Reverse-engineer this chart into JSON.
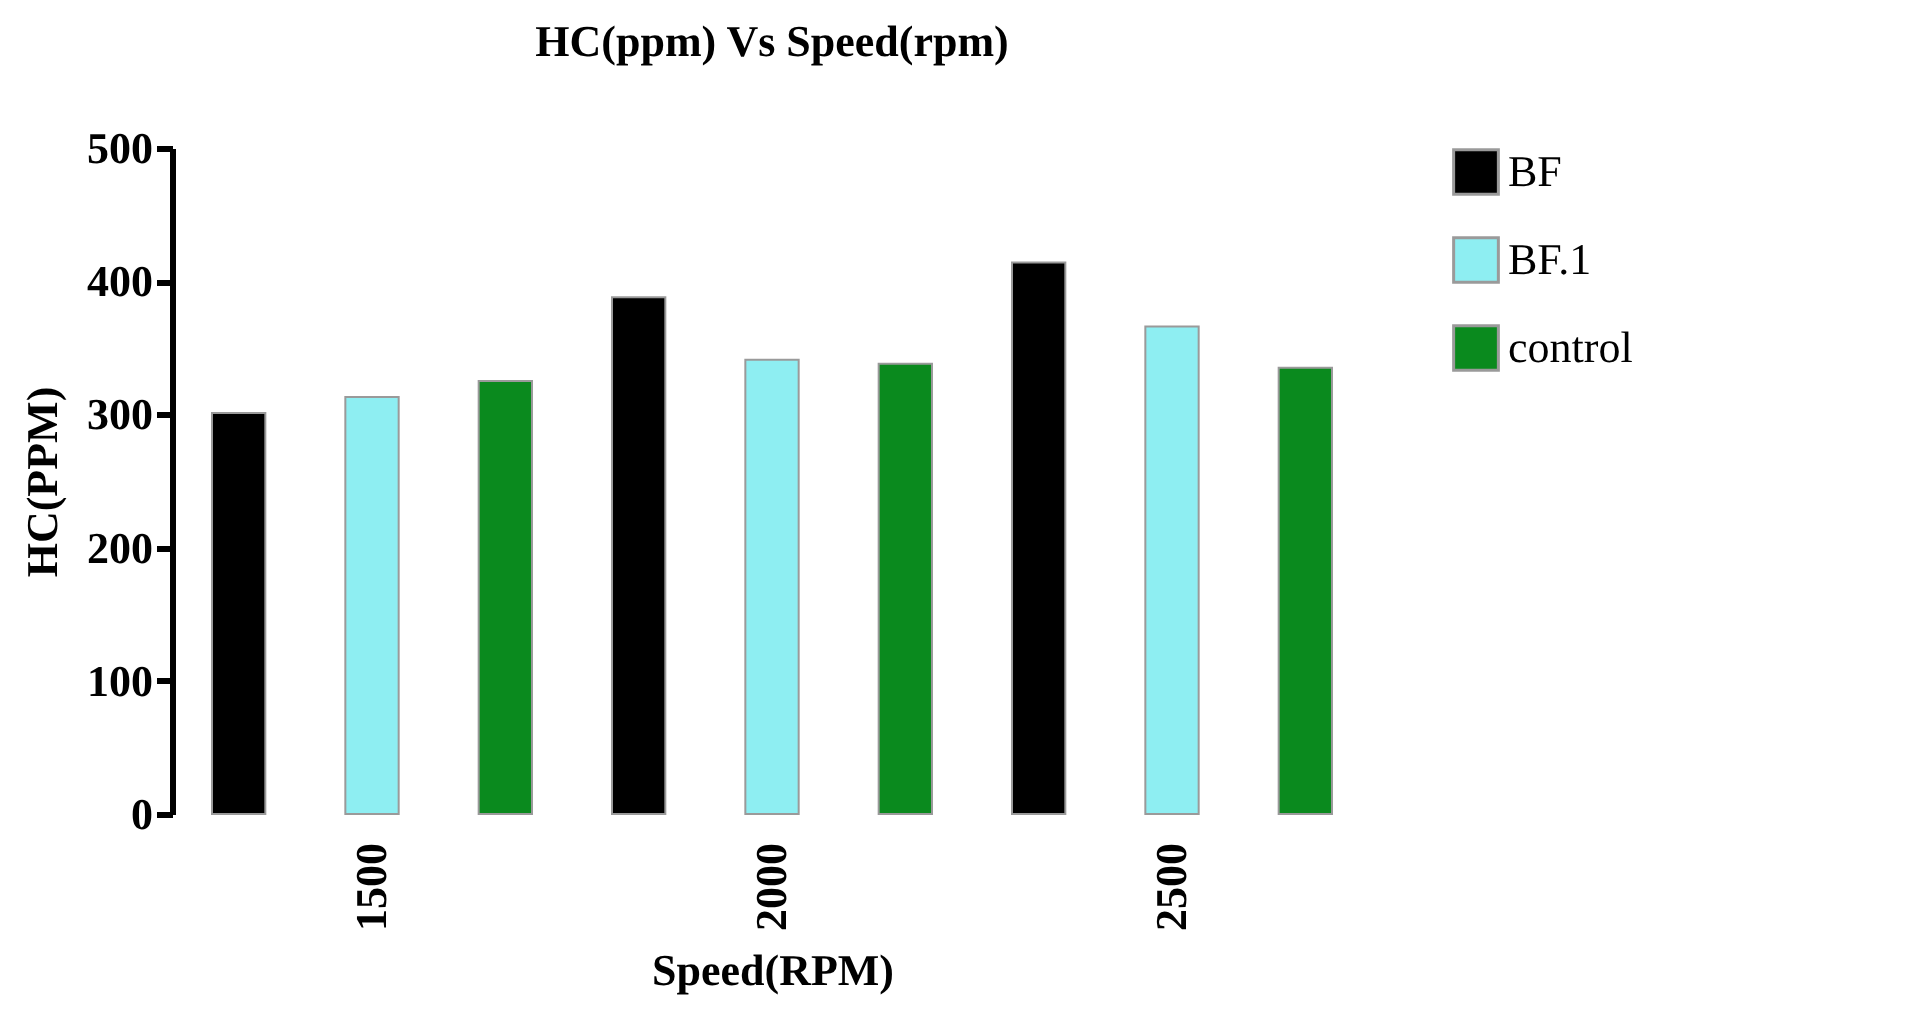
{
  "chart_data": {
    "type": "bar",
    "title": "HC(ppm) Vs Speed(rpm)",
    "xlabel": "Speed(RPM)",
    "ylabel": "HC(PPM)",
    "categories": [
      "1500",
      "2000",
      "2500"
    ],
    "series": [
      {
        "name": "BF",
        "color": "#000000",
        "values": [
          301,
          388,
          414
        ]
      },
      {
        "name": "BF.1",
        "color": "#8eeef2",
        "values": [
          313,
          341,
          366
        ]
      },
      {
        "name": "control",
        "color": "#0a8a1e",
        "values": [
          325,
          338,
          335
        ]
      }
    ],
    "ylim": [
      0,
      500
    ],
    "yticks": [
      0,
      100,
      200,
      300,
      400,
      500
    ],
    "grid": false,
    "legend": "top right"
  }
}
